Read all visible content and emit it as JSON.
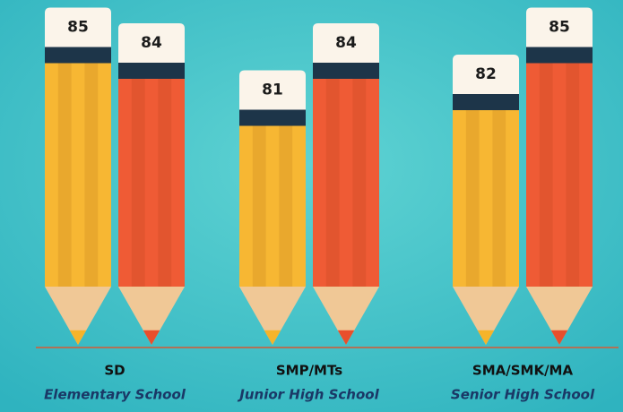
{
  "chart_data": {
    "type": "bar",
    "categories": [
      "SD",
      "SMP/MTs",
      "SMA/SMK/MA"
    ],
    "category_subtitles": [
      "Elementary School",
      "Junior High School",
      "Senior High School"
    ],
    "series": [
      {
        "color": "#f7b733",
        "values": [
          85,
          81,
          82
        ]
      },
      {
        "color": "#ef5b35",
        "values": [
          84,
          84,
          85
        ]
      }
    ],
    "ylim": [
      66,
      87
    ]
  }
}
